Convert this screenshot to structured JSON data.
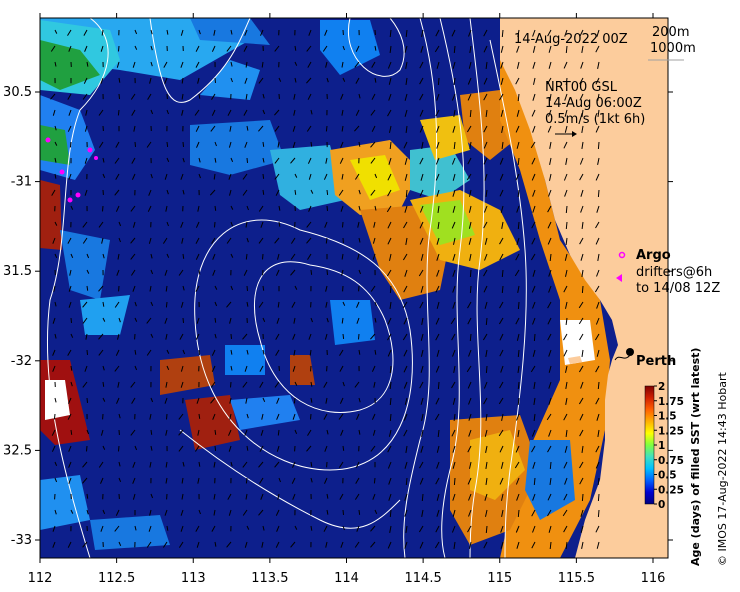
{
  "map": {
    "date_label": "14-Aug-2022 00Z",
    "isobath_labels": [
      "200m",
      "1000m"
    ],
    "current_info": [
      "NRT00 GSL",
      "14-Aug 06:00Z",
      "0.5m/s (1kt 6h)"
    ],
    "argo_label": "Argo",
    "drifter_labels": [
      "drifters@6h",
      "to 14/08 12Z"
    ],
    "city_label": "Perth",
    "x_ticks": [
      {
        "lon": 112,
        "label": "112"
      },
      {
        "lon": 112.5,
        "label": "112.5"
      },
      {
        "lon": 113,
        "label": "113"
      },
      {
        "lon": 113.5,
        "label": "113.5"
      },
      {
        "lon": 114,
        "label": "114"
      },
      {
        "lon": 114.5,
        "label": "114.5"
      },
      {
        "lon": 115,
        "label": "115"
      },
      {
        "lon": 115.5,
        "label": "115.5"
      },
      {
        "lon": 116,
        "label": "116"
      }
    ],
    "y_ticks": [
      {
        "lat": -30.5,
        "label": "30.5"
      },
      {
        "lat": -31,
        "label": "-31"
      },
      {
        "lat": -31.5,
        "label": "31.5"
      },
      {
        "lat": -32,
        "label": "-32"
      },
      {
        "lat": -32.5,
        "label": "32.5"
      },
      {
        "lat": -33,
        "label": "-33"
      }
    ],
    "colorbar": {
      "title": "Age (days) of filled SST (wrt latest)",
      "ticks": [
        {
          "value": 2,
          "label": "2"
        },
        {
          "value": 1.75,
          "label": "1.75"
        },
        {
          "value": 1.5,
          "label": "1.5"
        },
        {
          "value": 1.25,
          "label": "1.25"
        },
        {
          "value": 1,
          "label": "1"
        },
        {
          "value": 0.75,
          "label": "0.75"
        },
        {
          "value": 0.5,
          "label": "0.5"
        },
        {
          "value": 0.25,
          "label": "0.25"
        },
        {
          "value": 0,
          "label": "0"
        }
      ],
      "colors": [
        "#000080",
        "#0000d0",
        "#0060ff",
        "#00c0ff",
        "#40e0c0",
        "#80ff40",
        "#ffff00",
        "#ffb000",
        "#ff6000",
        "#d02000",
        "#800000"
      ]
    },
    "credit": "© IMOS 17-Aug-2022 14:43 Hobart",
    "colors": {
      "ocean": "#0d1f8c",
      "land": "#fccc9c",
      "coast_orange": "#f09010",
      "argo": "#ff00ff"
    }
  }
}
